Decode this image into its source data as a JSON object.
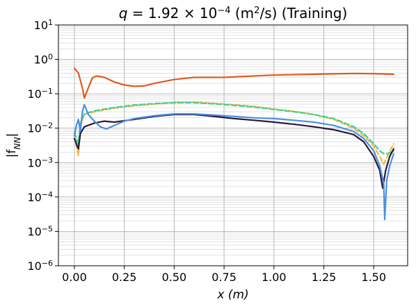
{
  "chart_data": {
    "type": "line",
    "title_parts": [
      "q",
      " = 1.92 × 10",
      "−4",
      " (m",
      "2",
      "/s) (Training)"
    ],
    "xlabel": "x (m)",
    "ylabel": "|f",
    "ylabel_sub": "NN",
    "ylabel_close": "|",
    "xlim": [
      -0.08,
      1.67
    ],
    "ylim": [
      1e-06,
      10
    ],
    "yscale": "log",
    "grid": true,
    "x_ticks": [
      {
        "value": 0.0,
        "label": "0.00"
      },
      {
        "value": 0.25,
        "label": "0.25"
      },
      {
        "value": 0.5,
        "label": "0.50"
      },
      {
        "value": 0.75,
        "label": "0.75"
      },
      {
        "value": 1.0,
        "label": "1.00"
      },
      {
        "value": 1.25,
        "label": "1.25"
      },
      {
        "value": 1.5,
        "label": "1.50"
      }
    ],
    "y_ticks": [
      {
        "exp": 1,
        "base": "10",
        "sup": "1"
      },
      {
        "exp": 0,
        "base": "10",
        "sup": "0"
      },
      {
        "exp": -1,
        "base": "10",
        "sup": "−1"
      },
      {
        "exp": -2,
        "base": "10",
        "sup": "−2"
      },
      {
        "exp": -3,
        "base": "10",
        "sup": "−3"
      },
      {
        "exp": -4,
        "base": "10",
        "sup": "−4"
      },
      {
        "exp": -5,
        "base": "10",
        "sup": "−5"
      },
      {
        "exp": -6,
        "base": "10",
        "sup": "−6"
      }
    ],
    "series": [
      {
        "color": "#e05a1e",
        "dash": "solid",
        "points": [
          [
            0.0,
            0.55
          ],
          [
            0.02,
            0.4
          ],
          [
            0.04,
            0.15
          ],
          [
            0.05,
            0.075
          ],
          [
            0.07,
            0.15
          ],
          [
            0.09,
            0.29
          ],
          [
            0.11,
            0.33
          ],
          [
            0.15,
            0.3
          ],
          [
            0.2,
            0.22
          ],
          [
            0.25,
            0.18
          ],
          [
            0.3,
            0.165
          ],
          [
            0.35,
            0.17
          ],
          [
            0.4,
            0.2
          ],
          [
            0.5,
            0.26
          ],
          [
            0.6,
            0.3
          ],
          [
            0.75,
            0.3
          ],
          [
            0.9,
            0.33
          ],
          [
            1.0,
            0.35
          ],
          [
            1.1,
            0.36
          ],
          [
            1.2,
            0.37
          ],
          [
            1.3,
            0.38
          ],
          [
            1.4,
            0.39
          ],
          [
            1.5,
            0.385
          ],
          [
            1.6,
            0.37
          ]
        ]
      },
      {
        "color": "#f0b83a",
        "dash": "dashed",
        "points": [
          [
            0.0,
            0.006
          ],
          [
            0.01,
            0.003
          ],
          [
            0.02,
            0.0016
          ],
          [
            0.03,
            0.012
          ],
          [
            0.05,
            0.025
          ],
          [
            0.1,
            0.03
          ],
          [
            0.2,
            0.038
          ],
          [
            0.3,
            0.045
          ],
          [
            0.4,
            0.05
          ],
          [
            0.5,
            0.056
          ],
          [
            0.6,
            0.057
          ],
          [
            0.7,
            0.053
          ],
          [
            0.8,
            0.048
          ],
          [
            0.9,
            0.043
          ],
          [
            1.0,
            0.036
          ],
          [
            1.1,
            0.031
          ],
          [
            1.2,
            0.025
          ],
          [
            1.3,
            0.018
          ],
          [
            1.4,
            0.01
          ],
          [
            1.45,
            0.006
          ],
          [
            1.5,
            0.003
          ],
          [
            1.53,
            0.0015
          ],
          [
            1.55,
            0.0009
          ],
          [
            1.57,
            0.0016
          ],
          [
            1.6,
            0.0035
          ]
        ]
      },
      {
        "color": "#3fcf9a",
        "dash": "dashed",
        "points": [
          [
            0.0,
            0.0075
          ],
          [
            0.01,
            0.005
          ],
          [
            0.02,
            0.0035
          ],
          [
            0.03,
            0.014
          ],
          [
            0.05,
            0.026
          ],
          [
            0.1,
            0.032
          ],
          [
            0.2,
            0.04
          ],
          [
            0.3,
            0.047
          ],
          [
            0.4,
            0.052
          ],
          [
            0.5,
            0.055
          ],
          [
            0.6,
            0.055
          ],
          [
            0.7,
            0.051
          ],
          [
            0.8,
            0.046
          ],
          [
            0.9,
            0.041
          ],
          [
            1.0,
            0.035
          ],
          [
            1.1,
            0.03
          ],
          [
            1.2,
            0.025
          ],
          [
            1.3,
            0.019
          ],
          [
            1.4,
            0.011
          ],
          [
            1.45,
            0.007
          ],
          [
            1.5,
            0.0035
          ],
          [
            1.53,
            0.0022
          ],
          [
            1.55,
            0.0018
          ],
          [
            1.57,
            0.0018
          ],
          [
            1.6,
            0.0022
          ]
        ]
      },
      {
        "color": "#2a1838",
        "dash": "solid",
        "points": [
          [
            0.0,
            0.005
          ],
          [
            0.01,
            0.0035
          ],
          [
            0.02,
            0.0025
          ],
          [
            0.03,
            0.007
          ],
          [
            0.05,
            0.011
          ],
          [
            0.1,
            0.014
          ],
          [
            0.15,
            0.016
          ],
          [
            0.2,
            0.015
          ],
          [
            0.3,
            0.018
          ],
          [
            0.4,
            0.022
          ],
          [
            0.5,
            0.025
          ],
          [
            0.6,
            0.025
          ],
          [
            0.7,
            0.022
          ],
          [
            0.8,
            0.019
          ],
          [
            0.9,
            0.017
          ],
          [
            1.0,
            0.015
          ],
          [
            1.1,
            0.013
          ],
          [
            1.2,
            0.011
          ],
          [
            1.3,
            0.009
          ],
          [
            1.4,
            0.0065
          ],
          [
            1.45,
            0.004
          ],
          [
            1.5,
            0.0015
          ],
          [
            1.53,
            0.0006
          ],
          [
            1.545,
            0.00018
          ],
          [
            1.56,
            0.0006
          ],
          [
            1.58,
            0.0015
          ],
          [
            1.6,
            0.0025
          ]
        ]
      },
      {
        "color": "#4a90e2",
        "dash": "solid",
        "points": [
          [
            0.0,
            0.006
          ],
          [
            0.01,
            0.012
          ],
          [
            0.02,
            0.018
          ],
          [
            0.03,
            0.008
          ],
          [
            0.04,
            0.03
          ],
          [
            0.05,
            0.048
          ],
          [
            0.07,
            0.025
          ],
          [
            0.1,
            0.016
          ],
          [
            0.13,
            0.011
          ],
          [
            0.16,
            0.0095
          ],
          [
            0.2,
            0.012
          ],
          [
            0.25,
            0.016
          ],
          [
            0.3,
            0.019
          ],
          [
            0.4,
            0.023
          ],
          [
            0.5,
            0.026
          ],
          [
            0.6,
            0.026
          ],
          [
            0.7,
            0.024
          ],
          [
            0.8,
            0.022
          ],
          [
            0.9,
            0.02
          ],
          [
            1.0,
            0.019
          ],
          [
            1.1,
            0.017
          ],
          [
            1.2,
            0.015
          ],
          [
            1.3,
            0.012
          ],
          [
            1.4,
            0.008
          ],
          [
            1.45,
            0.005
          ],
          [
            1.5,
            0.0022
          ],
          [
            1.53,
            0.0008
          ],
          [
            1.55,
            0.00025
          ],
          [
            1.555,
            2.2e-05
          ],
          [
            1.565,
            0.0003
          ],
          [
            1.58,
            0.0008
          ],
          [
            1.6,
            0.0018
          ]
        ]
      }
    ]
  }
}
